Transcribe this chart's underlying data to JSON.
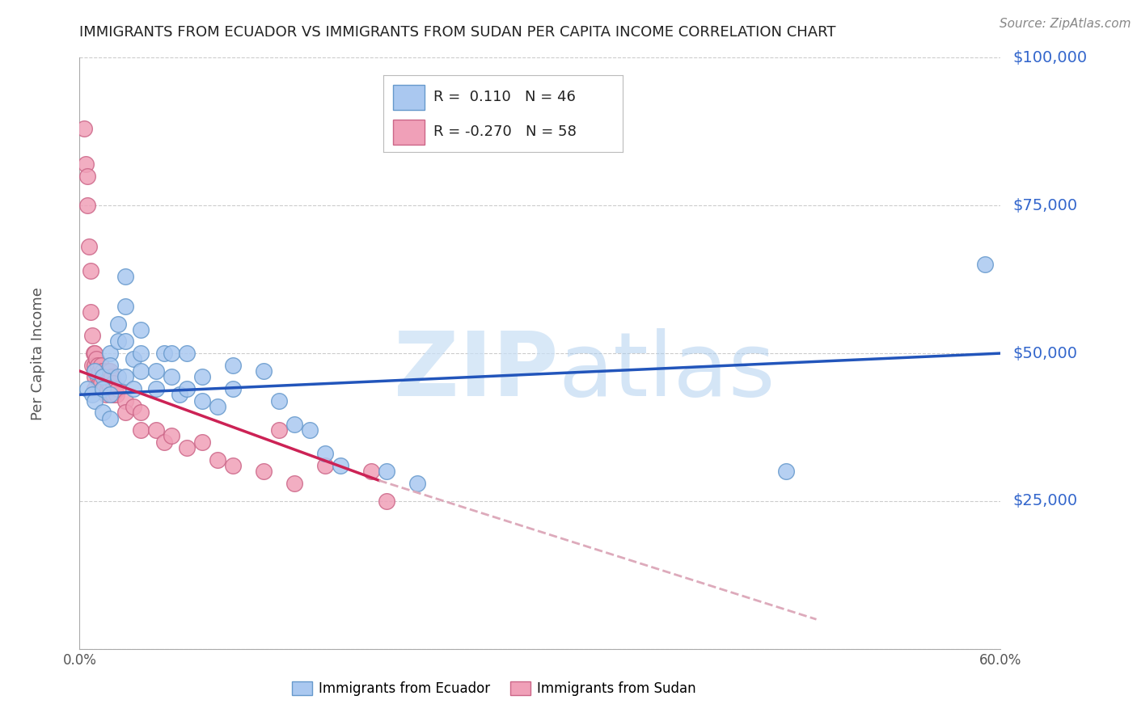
{
  "title": "IMMIGRANTS FROM ECUADOR VS IMMIGRANTS FROM SUDAN PER CAPITA INCOME CORRELATION CHART",
  "source": "Source: ZipAtlas.com",
  "ylabel": "Per Capita Income",
  "xlim": [
    0,
    0.6
  ],
  "ylim": [
    0,
    100000
  ],
  "yticks": [
    0,
    25000,
    50000,
    75000,
    100000
  ],
  "ytick_labels": [
    "",
    "$25,000",
    "$50,000",
    "$75,000",
    "$100,000"
  ],
  "xticks": [
    0.0,
    0.1,
    0.2,
    0.3,
    0.4,
    0.5,
    0.6
  ],
  "xtick_labels": [
    "0.0%",
    "",
    "",
    "",
    "",
    "",
    "60.0%"
  ],
  "ecuador_color": "#aac8f0",
  "ecuador_edge": "#6699cc",
  "sudan_color": "#f0a0b8",
  "sudan_edge": "#cc6688",
  "trendline_ecuador_color": "#2255bb",
  "trendline_sudan_color": "#cc2255",
  "trendline_sudan_dash_color": "#ddaabb",
  "R_ecuador": 0.11,
  "N_ecuador": 46,
  "R_sudan": -0.27,
  "N_sudan": 58,
  "watermark_zip": "ZIP",
  "watermark_atlas": "atlas",
  "watermark_color_zip": "#c8dff5",
  "watermark_color_atlas": "#aaccee",
  "background_color": "#ffffff",
  "grid_color": "#cccccc",
  "title_color": "#222222",
  "axis_label_color": "#555555",
  "ytick_color": "#3366cc",
  "legend_ecuador_label": "Immigrants from Ecuador",
  "legend_sudan_label": "Immigrants from Sudan",
  "ecuador_trend_x0": 0.0,
  "ecuador_trend_y0": 43000,
  "ecuador_trend_x1": 0.6,
  "ecuador_trend_y1": 50000,
  "sudan_trend_x0": 0.0,
  "sudan_trend_y0": 47000,
  "sudan_trend_solid_x1": 0.195,
  "sudan_trend_solid_y1": 28500,
  "sudan_trend_dash_x1": 0.48,
  "sudan_trend_dash_y1": 5000,
  "ecuador_scatter_x": [
    0.005,
    0.008,
    0.01,
    0.01,
    0.015,
    0.015,
    0.015,
    0.02,
    0.02,
    0.02,
    0.02,
    0.025,
    0.025,
    0.025,
    0.03,
    0.03,
    0.03,
    0.03,
    0.035,
    0.035,
    0.04,
    0.04,
    0.04,
    0.05,
    0.05,
    0.055,
    0.06,
    0.06,
    0.065,
    0.07,
    0.07,
    0.08,
    0.08,
    0.09,
    0.1,
    0.1,
    0.12,
    0.13,
    0.14,
    0.15,
    0.16,
    0.17,
    0.2,
    0.22,
    0.46,
    0.59
  ],
  "ecuador_scatter_y": [
    44000,
    43000,
    47000,
    42000,
    46000,
    44000,
    40000,
    50000,
    48000,
    43000,
    39000,
    55000,
    52000,
    46000,
    63000,
    58000,
    52000,
    46000,
    49000,
    44000,
    54000,
    50000,
    47000,
    47000,
    44000,
    50000,
    50000,
    46000,
    43000,
    50000,
    44000,
    46000,
    42000,
    41000,
    48000,
    44000,
    47000,
    42000,
    38000,
    37000,
    33000,
    31000,
    30000,
    28000,
    30000,
    65000
  ],
  "sudan_scatter_x": [
    0.003,
    0.004,
    0.005,
    0.005,
    0.006,
    0.007,
    0.007,
    0.008,
    0.008,
    0.009,
    0.01,
    0.01,
    0.01,
    0.01,
    0.01,
    0.011,
    0.012,
    0.012,
    0.013,
    0.013,
    0.014,
    0.014,
    0.015,
    0.015,
    0.016,
    0.016,
    0.017,
    0.017,
    0.018,
    0.018,
    0.019,
    0.02,
    0.02,
    0.021,
    0.021,
    0.022,
    0.022,
    0.023,
    0.024,
    0.025,
    0.03,
    0.03,
    0.035,
    0.04,
    0.04,
    0.05,
    0.055,
    0.06,
    0.07,
    0.08,
    0.09,
    0.1,
    0.12,
    0.13,
    0.14,
    0.16,
    0.19,
    0.2
  ],
  "sudan_scatter_y": [
    88000,
    82000,
    80000,
    75000,
    68000,
    64000,
    57000,
    53000,
    48000,
    50000,
    50000,
    48000,
    47000,
    46000,
    44000,
    49000,
    48000,
    46000,
    47000,
    45000,
    48000,
    45000,
    47000,
    44000,
    46000,
    44000,
    46000,
    43000,
    47000,
    44000,
    45000,
    47000,
    44000,
    46000,
    43000,
    45000,
    43000,
    44000,
    43000,
    44000,
    42000,
    40000,
    41000,
    40000,
    37000,
    37000,
    35000,
    36000,
    34000,
    35000,
    32000,
    31000,
    30000,
    37000,
    28000,
    31000,
    30000,
    25000
  ]
}
